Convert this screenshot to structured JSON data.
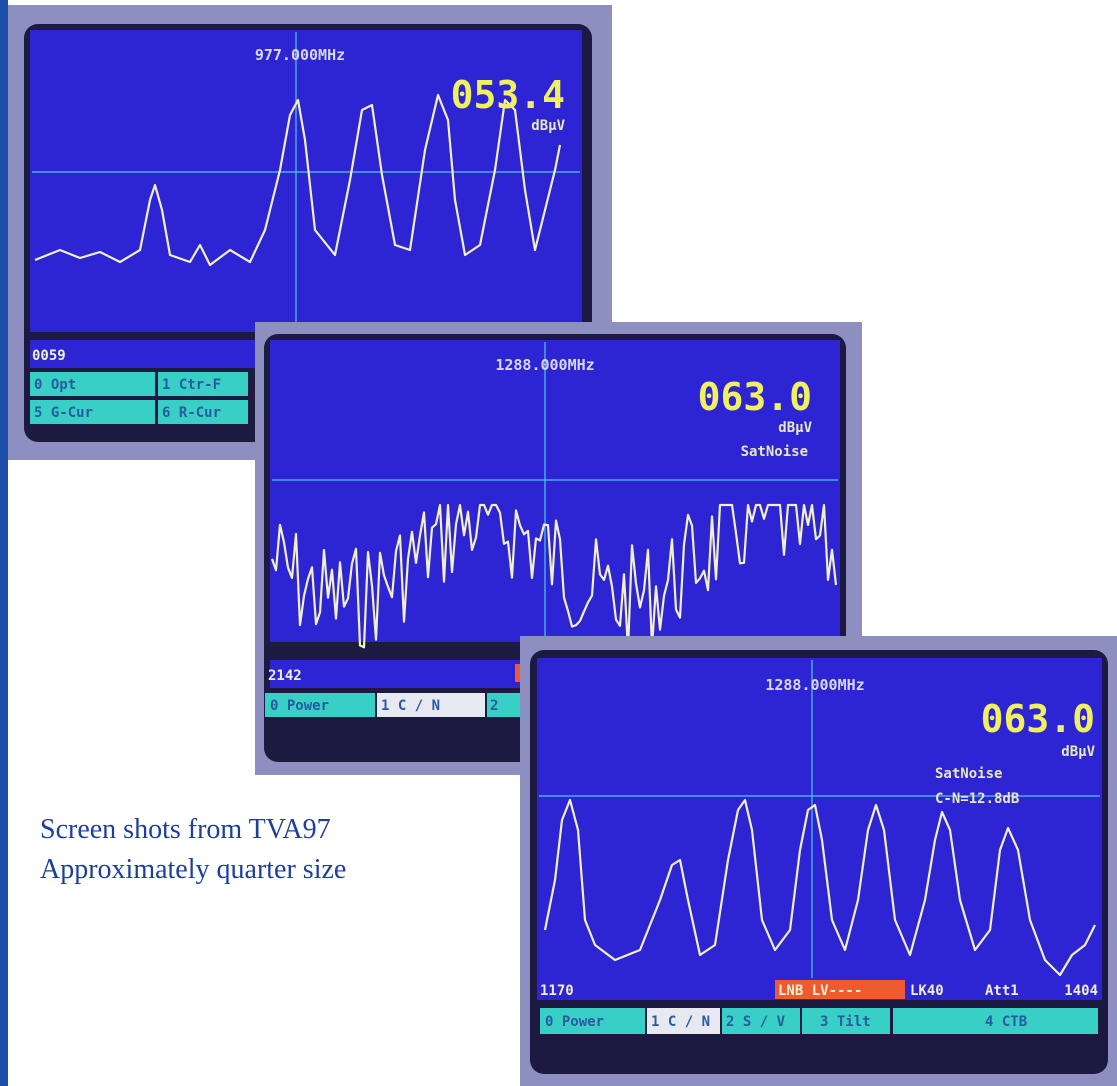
{
  "screens": [
    {
      "frequency": "977.000MHz",
      "level": "053.4",
      "unit": "dBµV",
      "marker": "0059",
      "softkeys": [
        "0 Opt",
        "1 Ctr-F",
        "5 G-Cur",
        "6 R-Cur"
      ]
    },
    {
      "frequency": "1288.000MHz",
      "level": "063.0",
      "unit": "dBµV",
      "mode": "SatNoise",
      "marker": "2142",
      "softkeys": [
        "0 Power",
        "1 C / N",
        "2"
      ]
    },
    {
      "frequency": "1288.000MHz",
      "level": "063.0",
      "unit": "dBµV",
      "mode": "SatNoise",
      "reading": "C-N=12.8dB",
      "marker": "1170",
      "status": [
        "LNB LV----",
        "LK40",
        "Att1",
        "1404"
      ],
      "softkeys": [
        "0 Power",
        "1 C / N",
        "2 S / V",
        "3 Tilt",
        "4 CTB"
      ]
    }
  ],
  "caption": [
    "Screen shots from TVA97",
    "Approximately quarter size"
  ]
}
